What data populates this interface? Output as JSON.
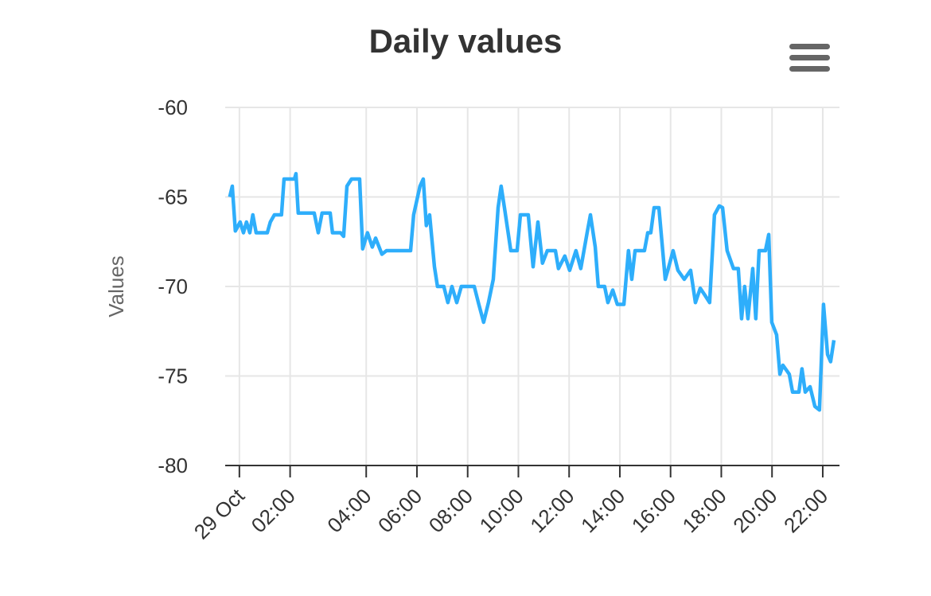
{
  "chart_data": {
    "type": "line",
    "title": "Daily values",
    "ylabel": "Values",
    "x": [
      -0.38,
      -0.28,
      -0.16,
      0.03,
      0.16,
      0.28,
      0.41,
      0.53,
      0.66,
      1.1,
      1.22,
      1.38,
      1.66,
      1.76,
      2.17,
      2.23,
      2.32,
      2.95,
      3.11,
      3.26,
      3.58,
      3.67,
      3.99,
      4.11,
      4.24,
      4.42,
      4.74,
      4.86,
      5.05,
      5.24,
      5.37,
      5.62,
      5.8,
      6.75,
      6.87,
      7.12,
      7.25,
      7.37,
      7.5,
      7.69,
      7.81,
      8.06,
      8.22,
      8.38,
      8.57,
      8.75,
      9.26,
      9.44,
      9.63,
      9.82,
      10.01,
      10.2,
      10.32,
      10.45,
      10.7,
      10.95,
      11.08,
      11.39,
      11.58,
      11.77,
      11.95,
      12.14,
      12.46,
      12.58,
      12.83,
      13.02,
      13.27,
      13.46,
      13.71,
      13.84,
      14.03,
      14.15,
      14.4,
      14.53,
      14.72,
      14.9,
      15.16,
      15.34,
      15.47,
      15.6,
      15.97,
      16.1,
      16.22,
      16.35,
      16.54,
      16.79,
      16.91,
      17.1,
      17.29,
      17.54,
      17.79,
      17.98,
      18.17,
      18.36,
      18.54,
      18.73,
      18.92,
      19.05,
      19.23,
      19.48,
      19.67,
      19.8,
      19.92,
      20.05,
      20.24,
      20.36,
      20.49,
      20.74,
      20.87,
      20.99,
      21.18,
      21.31,
      21.43,
      21.68,
      21.81,
      22.06,
      22.18,
      22.31,
      22.5,
      22.69,
      22.87,
      23.03,
      23.19,
      23.31,
      23.44
    ],
    "series": [
      {
        "name": "Values",
        "color": "#2eaefb",
        "values": [
          -65.0,
          -64.4,
          -66.9,
          -66.4,
          -67.0,
          -66.4,
          -67.0,
          -66.0,
          -67.0,
          -67.0,
          -66.4,
          -66.0,
          -66.0,
          -64.0,
          -64.0,
          -63.7,
          -65.9,
          -65.9,
          -67.0,
          -65.9,
          -65.9,
          -67.0,
          -67.0,
          -67.2,
          -64.4,
          -64.0,
          -64.0,
          -67.9,
          -67.0,
          -67.8,
          -67.3,
          -68.2,
          -68.0,
          -68.0,
          -66.0,
          -64.4,
          -64.0,
          -66.6,
          -66.0,
          -68.9,
          -70.0,
          -70.0,
          -70.9,
          -70.0,
          -70.9,
          -70.0,
          -70.0,
          -71.0,
          -72.0,
          -70.9,
          -69.6,
          -65.6,
          -64.4,
          -65.6,
          -68.0,
          -68.0,
          -66.0,
          -66.0,
          -68.9,
          -66.4,
          -68.7,
          -68.0,
          -68.0,
          -69.0,
          -68.3,
          -69.1,
          -68.0,
          -69.0,
          -67.0,
          -66.0,
          -67.8,
          -70.0,
          -70.0,
          -70.9,
          -70.2,
          -71.0,
          -71.0,
          -68.0,
          -69.6,
          -68.0,
          -68.0,
          -67.0,
          -67.0,
          -65.6,
          -65.6,
          -69.6,
          -69.0,
          -68.0,
          -69.1,
          -69.6,
          -69.1,
          -70.9,
          -70.1,
          -70.5,
          -70.9,
          -66.0,
          -65.5,
          -65.6,
          -68.0,
          -69.0,
          -69.0,
          -71.8,
          -70.0,
          -71.8,
          -69.0,
          -71.8,
          -68.0,
          -68.0,
          -67.1,
          -72.0,
          -72.7,
          -74.9,
          -74.4,
          -74.9,
          -75.9,
          -75.9,
          -74.6,
          -75.9,
          -75.6,
          -76.7,
          -76.9,
          -71.0,
          -73.8,
          -74.2,
          -73.0
        ]
      }
    ],
    "xlim": [
      -0.56,
      23.66
    ],
    "xticks": [
      {
        "value": 0,
        "label": "29 Oct"
      },
      {
        "value": 2,
        "label": "02:00"
      },
      {
        "value": 5,
        "label": "04:00"
      },
      {
        "value": 7,
        "label": "06:00"
      },
      {
        "value": 9,
        "label": "08:00"
      },
      {
        "value": 11,
        "label": "10:00"
      },
      {
        "value": 13,
        "label": "12:00"
      },
      {
        "value": 15,
        "label": "14:00"
      },
      {
        "value": 17,
        "label": "16:00"
      },
      {
        "value": 19,
        "label": "18:00"
      },
      {
        "value": 21,
        "label": "20:00"
      },
      {
        "value": 23,
        "label": "22:00"
      }
    ],
    "ylim": [
      -80,
      -60
    ],
    "yticks": [
      -80,
      -75,
      -70,
      -65,
      -60
    ],
    "grid": true
  }
}
